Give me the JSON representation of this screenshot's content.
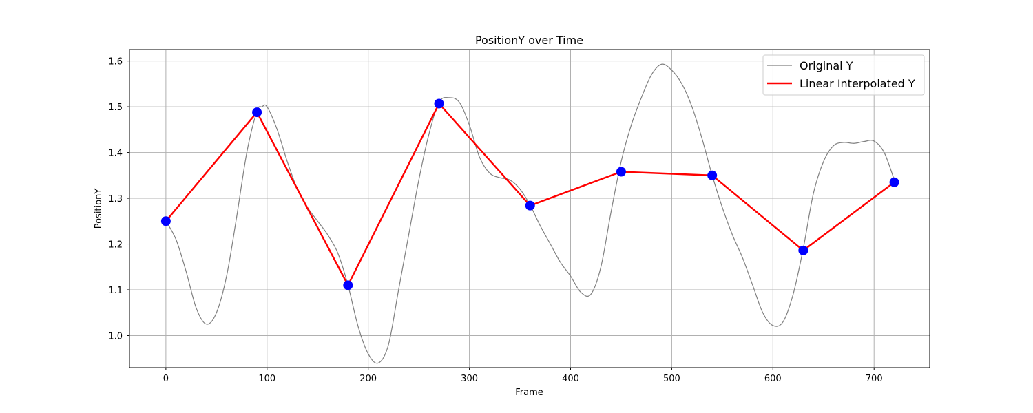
{
  "chart_data": {
    "type": "line",
    "title": "PositionY over Time",
    "xlabel": "Frame",
    "ylabel": "PositionY",
    "xlim": [
      -36,
      755
    ],
    "ylim": [
      0.93,
      1.625
    ],
    "xticks": [
      0,
      100,
      200,
      300,
      400,
      500,
      600,
      700
    ],
    "yticks": [
      1.0,
      1.1,
      1.2,
      1.3,
      1.4,
      1.5,
      1.6
    ],
    "xtick_labels": [
      "0",
      "100",
      "200",
      "300",
      "400",
      "500",
      "600",
      "700"
    ],
    "ytick_labels": [
      "1.0",
      "1.1",
      "1.2",
      "1.3",
      "1.4",
      "1.5",
      "1.6"
    ],
    "grid": true,
    "legend_position": "top-right",
    "colors": {
      "original": "#808080",
      "interpolated": "#ff0000",
      "markers": "#0000ff",
      "grid": "#b0b0b0"
    },
    "series": [
      {
        "name": "Original Y",
        "x": [
          0,
          10,
          20,
          30,
          40,
          50,
          60,
          70,
          80,
          90,
          95,
          100,
          110,
          120,
          130,
          140,
          150,
          160,
          170,
          180,
          190,
          200,
          210,
          220,
          230,
          240,
          250,
          260,
          270,
          280,
          290,
          300,
          310,
          320,
          330,
          340,
          350,
          360,
          370,
          380,
          390,
          400,
          410,
          420,
          430,
          440,
          450,
          460,
          470,
          480,
          490,
          500,
          510,
          520,
          530,
          540,
          550,
          560,
          570,
          580,
          590,
          600,
          610,
          620,
          630,
          640,
          650,
          660,
          670,
          680,
          690,
          700,
          710,
          720
        ],
        "values": [
          1.25,
          1.21,
          1.14,
          1.06,
          1.025,
          1.05,
          1.13,
          1.26,
          1.4,
          1.49,
          1.5,
          1.5,
          1.45,
          1.38,
          1.32,
          1.28,
          1.25,
          1.22,
          1.18,
          1.11,
          1.02,
          0.96,
          0.94,
          0.98,
          1.1,
          1.22,
          1.34,
          1.44,
          1.51,
          1.52,
          1.51,
          1.46,
          1.39,
          1.355,
          1.345,
          1.34,
          1.32,
          1.285,
          1.24,
          1.2,
          1.16,
          1.13,
          1.095,
          1.09,
          1.15,
          1.27,
          1.38,
          1.46,
          1.52,
          1.57,
          1.593,
          1.58,
          1.55,
          1.5,
          1.43,
          1.35,
          1.28,
          1.22,
          1.17,
          1.11,
          1.05,
          1.022,
          1.03,
          1.09,
          1.19,
          1.31,
          1.38,
          1.415,
          1.422,
          1.42,
          1.424,
          1.425,
          1.4,
          1.34
        ]
      },
      {
        "name": "Linear Interpolated Y",
        "x": [
          0,
          90,
          180,
          270,
          360,
          450,
          540,
          630,
          720
        ],
        "values": [
          1.25,
          1.488,
          1.11,
          1.507,
          1.284,
          1.358,
          1.35,
          1.186,
          1.335
        ]
      }
    ]
  }
}
